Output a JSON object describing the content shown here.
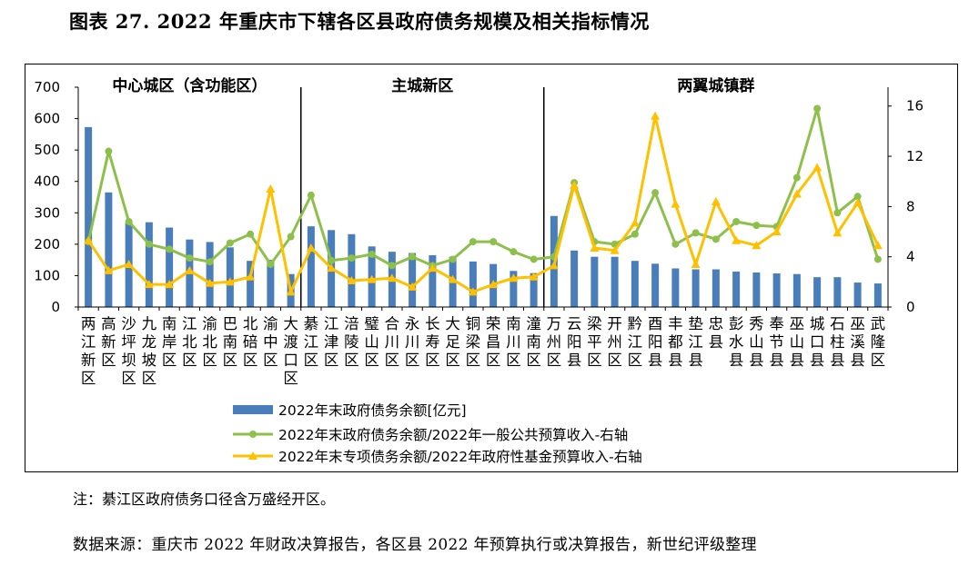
{
  "page": {
    "title": "图表 27. 2022 年重庆市下辖各区县政府债务规模及相关指标情况",
    "note": "注：綦江区政府债务口径含万盛经开区。",
    "source": "数据来源：重庆市 2022 年财政决算报告，各区县 2022 年预算执行或决算报告，新世纪评级整理"
  },
  "chart_data": {
    "type": "bar",
    "title": "",
    "categories": [
      "两江新区",
      "高新区",
      "沙坪坝区",
      "九龙坡区",
      "南岸区",
      "江北区",
      "渝北区",
      "巴南区",
      "北碚区",
      "渝中区",
      "大渡口区",
      "綦江区",
      "江津区",
      "涪陵区",
      "璧山区",
      "合川区",
      "永川区",
      "长寿区",
      "大足区",
      "铜梁区",
      "荣昌区",
      "南川区",
      "潼南区",
      "万州区",
      "云阳县",
      "梁平区",
      "开州区",
      "黔江区",
      "酉阳县",
      "丰都县",
      "垫江县",
      "忠县",
      "彭水县",
      "秀山县",
      "奉节县",
      "巫山县",
      "城口县",
      "石柱县",
      "巫溪县",
      "武隆区"
    ],
    "groups": [
      {
        "label": "中心城区（含功能区）",
        "start": 0,
        "end": 10
      },
      {
        "label": "主城新区",
        "start": 11,
        "end": 22
      },
      {
        "label": "两翼城镇群",
        "start": 23,
        "end": 39
      }
    ],
    "series": [
      {
        "name": "2022年末政府债务余额[亿元]",
        "type": "bar",
        "axis": "left",
        "color": "#4a7ebb",
        "values": [
          573,
          365,
          268,
          270,
          253,
          215,
          207,
          190,
          147,
          150,
          105,
          257,
          245,
          232,
          193,
          176,
          172,
          165,
          160,
          145,
          137,
          115,
          108,
          290,
          180,
          160,
          160,
          147,
          138,
          123,
          120,
          120,
          113,
          110,
          107,
          105,
          95,
          95,
          78,
          75
        ]
      },
      {
        "name": "2022年末政府债务余额/2022年一般公共预算收入-右轴",
        "type": "line",
        "axis": "right",
        "color": "#8dc04a",
        "values": [
          5.2,
          12.4,
          6.8,
          5.0,
          4.6,
          3.9,
          3.6,
          5.1,
          5.8,
          3.4,
          5.6,
          8.9,
          3.7,
          3.9,
          4.2,
          3.3,
          4.0,
          3.3,
          3.8,
          5.2,
          5.2,
          4.4,
          3.8,
          4.0,
          9.9,
          5.2,
          5.0,
          5.8,
          9.1,
          5.0,
          5.9,
          5.4,
          6.8,
          6.5,
          6.4,
          10.3,
          15.8,
          7.5,
          8.8,
          3.8
        ]
      },
      {
        "name": "2022年末专项债务余额/2022年政府性基金预算收入-右轴",
        "type": "line",
        "axis": "right",
        "color": "#ffc000",
        "values": [
          5.3,
          2.9,
          3.4,
          1.8,
          1.8,
          2.9,
          1.9,
          2.0,
          2.4,
          9.4,
          1.2,
          4.7,
          3.1,
          2.1,
          2.2,
          2.3,
          1.6,
          3.1,
          2.2,
          1.2,
          1.8,
          2.3,
          2.4,
          3.3,
          9.7,
          4.7,
          4.5,
          6.7,
          15.2,
          8.2,
          3.4,
          8.4,
          5.3,
          4.9,
          6.0,
          9.0,
          11.1,
          5.9,
          8.3,
          4.9
        ]
      }
    ],
    "ylim": [
      0,
      700
    ],
    "yticks": [
      0,
      100,
      200,
      300,
      400,
      500,
      600,
      700
    ],
    "y2lim": [
      0,
      17.5
    ],
    "y2ticks": [
      0,
      4,
      8,
      12,
      16
    ],
    "legend": "bottom-center",
    "grid": false
  }
}
